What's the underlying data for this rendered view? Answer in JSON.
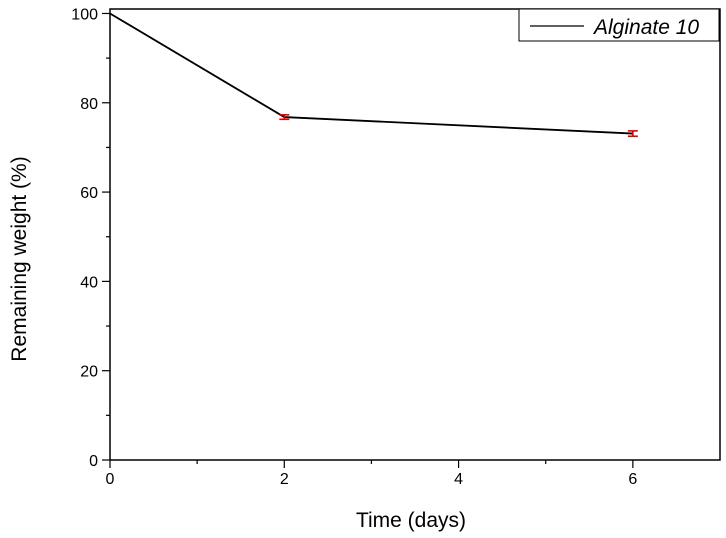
{
  "chart_data": {
    "type": "line",
    "xlabel": "Time (days)",
    "ylabel": "Remaining weight (%)",
    "xlim": [
      0,
      7
    ],
    "ylim": [
      0,
      101
    ],
    "x_ticks": [
      0,
      2,
      4,
      6
    ],
    "x_tick_labels": [
      "0",
      "2",
      "4",
      "6"
    ],
    "y_ticks": [
      0,
      20,
      40,
      60,
      80,
      100
    ],
    "y_tick_labels": [
      "0",
      "20",
      "40",
      "60",
      "80",
      "100"
    ],
    "grid": false,
    "legend_position": "top-right",
    "series": [
      {
        "name": "Alginate 10",
        "line_color": "#000000",
        "errorbar_color": "#e00000",
        "x": [
          0,
          2,
          6
        ],
        "y": [
          100,
          76.8,
          73.1
        ],
        "yerr": [
          0,
          0.5,
          0.6
        ]
      }
    ]
  }
}
